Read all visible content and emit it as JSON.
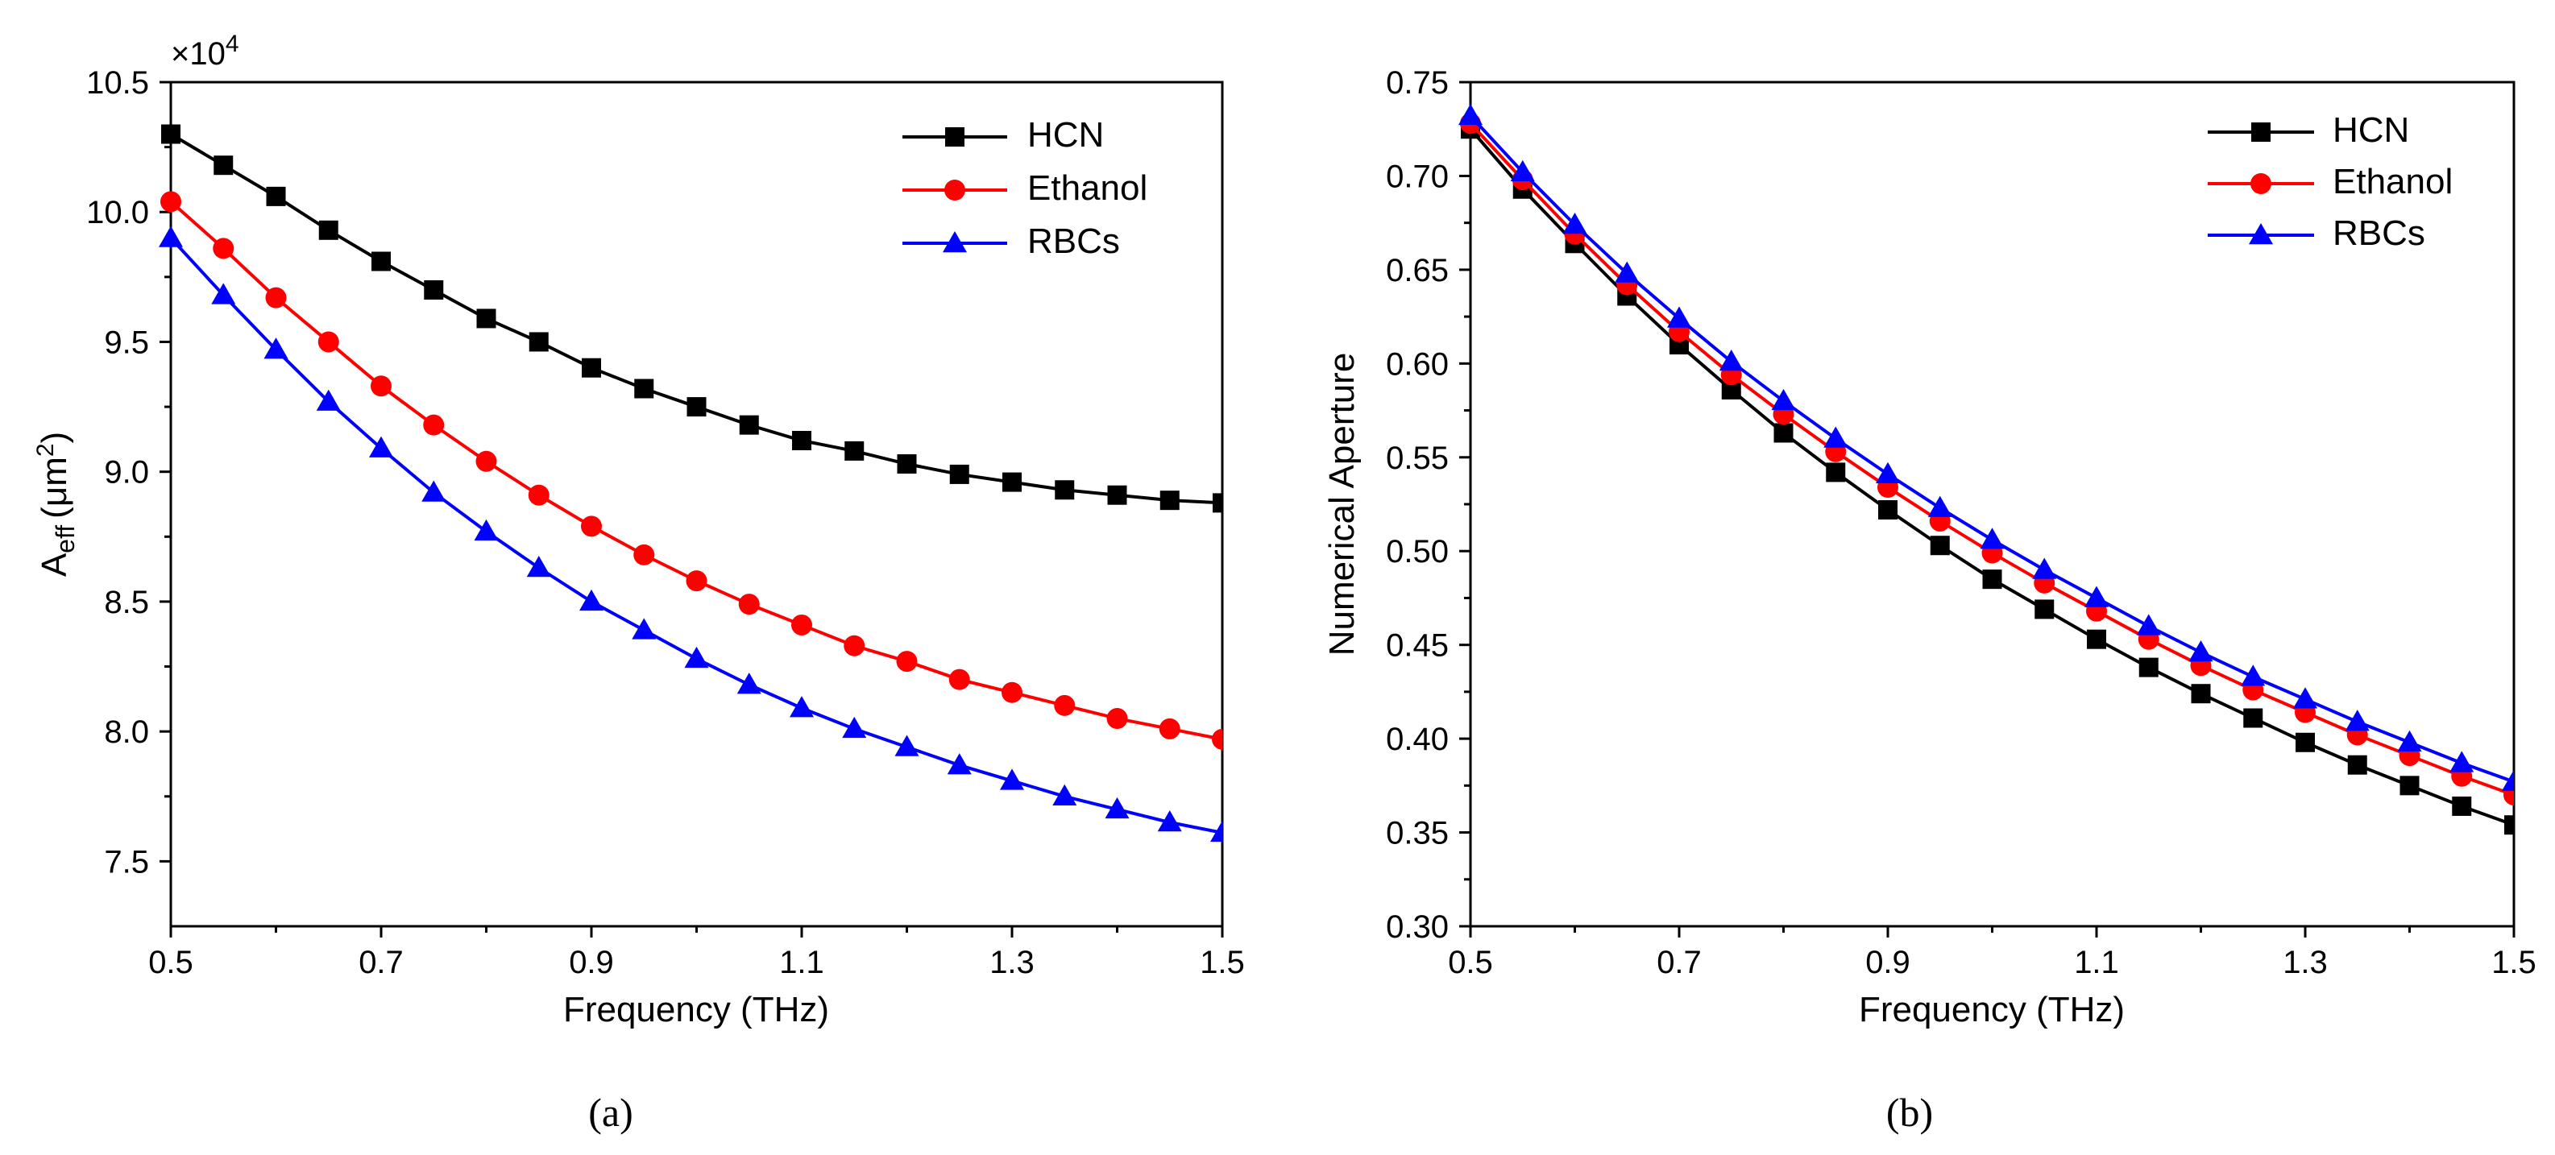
{
  "figure": {
    "panels": [
      {
        "caption": "(a)"
      },
      {
        "caption": "(b)"
      }
    ]
  },
  "chart_data": [
    {
      "type": "line",
      "title": "",
      "xlabel": "Frequency (THz)",
      "ylabel_main": "A",
      "ylabel_sub": "eff",
      "ylabel_unit": "(μm",
      "ylabel_sup": "2",
      "ylabel_close": ")",
      "y_multiplier": "×10",
      "y_multiplier_exp": "4",
      "xlim": [
        0.5,
        1.5
      ],
      "ylim": [
        7.25,
        10.5
      ],
      "xticks": [
        "0.5",
        "0.7",
        "0.9",
        "1.1",
        "1.3",
        "1.5"
      ],
      "yticks": [
        "7.5",
        "8.0",
        "8.5",
        "9.0",
        "9.5",
        "10.0",
        "10.5"
      ],
      "legend_position": "top-right",
      "x": [
        0.5,
        0.55,
        0.6,
        0.65,
        0.7,
        0.75,
        0.8,
        0.85,
        0.9,
        0.95,
        1.0,
        1.05,
        1.1,
        1.15,
        1.2,
        1.25,
        1.3,
        1.35,
        1.4,
        1.45,
        1.5
      ],
      "series": [
        {
          "name": "HCN",
          "color": "#000000",
          "marker": "square",
          "values": [
            10.3,
            10.18,
            10.06,
            9.93,
            9.81,
            9.7,
            9.59,
            9.5,
            9.4,
            9.32,
            9.25,
            9.18,
            9.12,
            9.08,
            9.03,
            8.99,
            8.96,
            8.93,
            8.91,
            8.89,
            8.88
          ]
        },
        {
          "name": "Ethanol",
          "color": "#ff0000",
          "marker": "circle",
          "values": [
            10.04,
            9.86,
            9.67,
            9.5,
            9.33,
            9.18,
            9.04,
            8.91,
            8.79,
            8.68,
            8.58,
            8.49,
            8.41,
            8.33,
            8.27,
            8.2,
            8.15,
            8.1,
            8.05,
            8.01,
            7.97
          ]
        },
        {
          "name": "RBCs",
          "color": "#0000ff",
          "marker": "triangle",
          "values": [
            9.9,
            9.68,
            9.47,
            9.27,
            9.09,
            8.92,
            8.77,
            8.63,
            8.5,
            8.39,
            8.28,
            8.18,
            8.09,
            8.01,
            7.94,
            7.87,
            7.81,
            7.75,
            7.7,
            7.65,
            7.61
          ]
        }
      ]
    },
    {
      "type": "line",
      "title": "",
      "xlabel": "Frequency (THz)",
      "ylabel": "Numerical Aperture",
      "xlim": [
        0.5,
        1.5
      ],
      "ylim": [
        0.3,
        0.75
      ],
      "xticks": [
        "0.5",
        "0.7",
        "0.9",
        "1.1",
        "1.3",
        "1.5"
      ],
      "yticks": [
        "0.30",
        "0.35",
        "0.40",
        "0.45",
        "0.50",
        "0.55",
        "0.60",
        "0.65",
        "0.70",
        "0.75"
      ],
      "legend_position": "top-right",
      "x": [
        0.5,
        0.55,
        0.6,
        0.65,
        0.7,
        0.75,
        0.8,
        0.85,
        0.9,
        0.95,
        1.0,
        1.05,
        1.1,
        1.15,
        1.2,
        1.25,
        1.3,
        1.35,
        1.4,
        1.45,
        1.5
      ],
      "series": [
        {
          "name": "HCN",
          "color": "#000000",
          "marker": "square",
          "values": [
            0.725,
            0.693,
            0.664,
            0.636,
            0.61,
            0.586,
            0.563,
            0.542,
            0.522,
            0.503,
            0.485,
            0.469,
            0.453,
            0.438,
            0.424,
            0.411,
            0.398,
            0.386,
            0.375,
            0.364,
            0.354
          ]
        },
        {
          "name": "Ethanol",
          "color": "#ff0000",
          "marker": "circle",
          "values": [
            0.728,
            0.698,
            0.669,
            0.642,
            0.617,
            0.594,
            0.573,
            0.553,
            0.534,
            0.516,
            0.499,
            0.483,
            0.468,
            0.453,
            0.439,
            0.426,
            0.414,
            0.402,
            0.391,
            0.38,
            0.37
          ]
        },
        {
          "name": "RBCs",
          "color": "#0000ff",
          "marker": "triangle",
          "values": [
            0.732,
            0.702,
            0.674,
            0.648,
            0.624,
            0.601,
            0.58,
            0.56,
            0.541,
            0.523,
            0.506,
            0.49,
            0.475,
            0.46,
            0.446,
            0.433,
            0.421,
            0.409,
            0.398,
            0.387,
            0.377
          ]
        }
      ]
    }
  ]
}
